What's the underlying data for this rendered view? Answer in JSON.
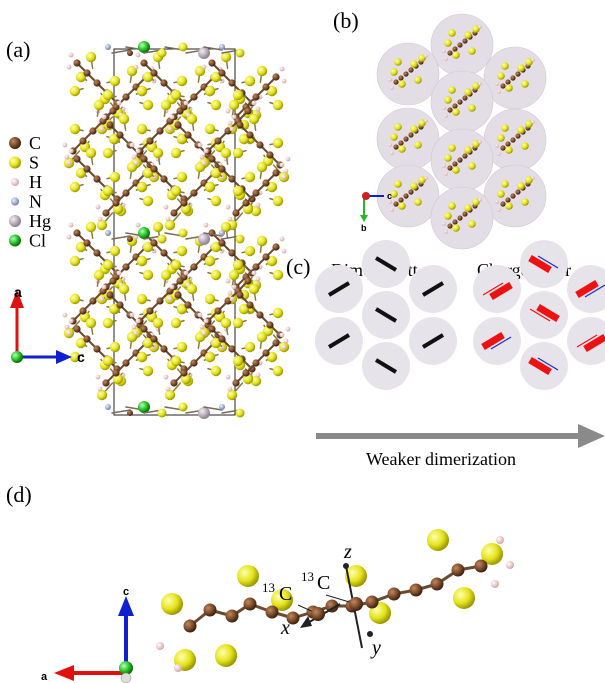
{
  "panels": {
    "a": "(a)",
    "b": "(b)",
    "c": "(c)",
    "d": "(d)"
  },
  "legend": [
    {
      "symbol": "C",
      "color": "#7a4a2a"
    },
    {
      "symbol": "S",
      "color": "#e0e020"
    },
    {
      "symbol": "H",
      "color": "#f3c8c8"
    },
    {
      "symbol": "N",
      "color": "#8fa3c9"
    },
    {
      "symbol": "Hg",
      "color": "#b8a8b8"
    },
    {
      "symbol": "Cl",
      "color": "#33cc33"
    }
  ],
  "axes": {
    "a_vertical": "a",
    "a_horizontal": "c",
    "b_horizontal": "c",
    "b_vertical": "b",
    "d_vertical": "c",
    "d_horizontal": "a"
  },
  "panel_c": {
    "left_title": "Dimer-Mott",
    "right_title": "Charge order",
    "arrow_label": "Weaker dimerization"
  },
  "panel_d": {
    "isotope_1": "13C",
    "isotope_2": "13C",
    "axis_x": "x",
    "axis_y": "y",
    "axis_z": "z"
  },
  "colors": {
    "carbon": "#7a4a2a",
    "sulfur": "#e0e020",
    "dimer_disc": "#e6e3ea",
    "charge_rich": "#ee1111",
    "charge_poor": "#1a2bd0",
    "arrow": "#888888"
  }
}
